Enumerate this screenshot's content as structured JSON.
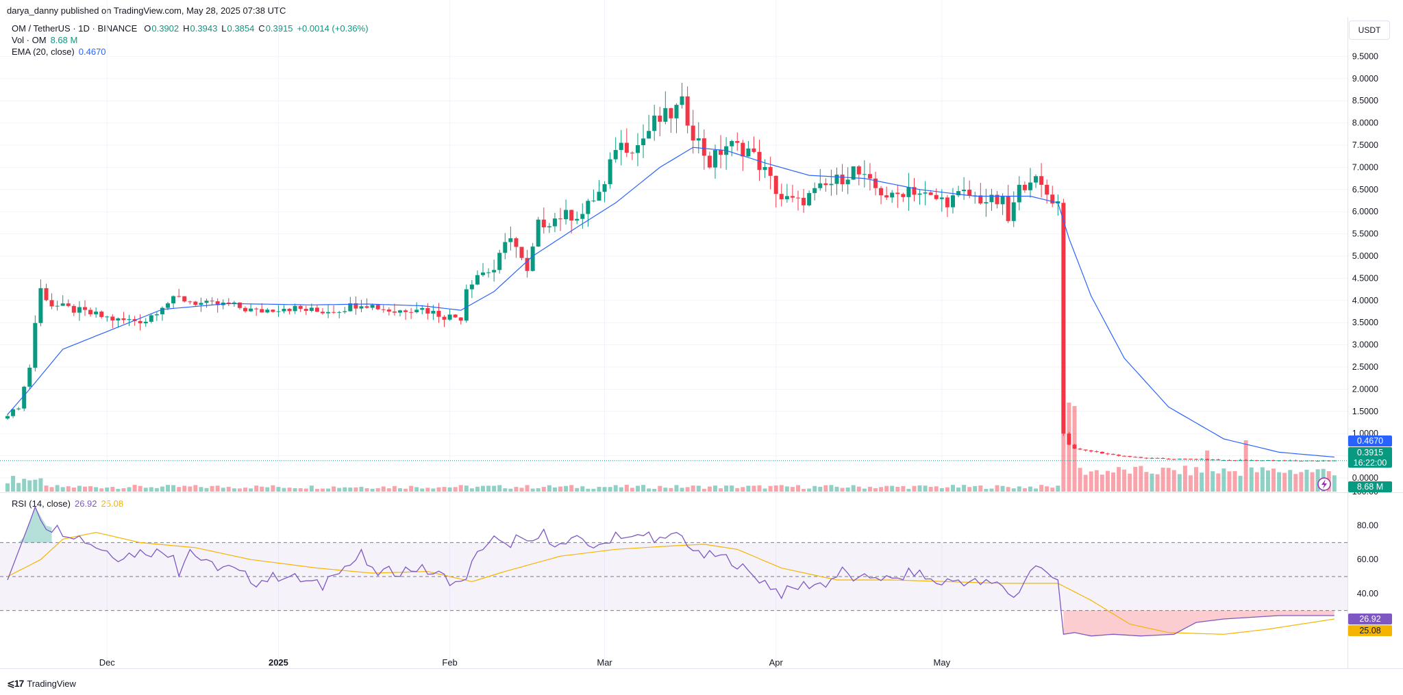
{
  "attribution": "darya_danny published on TradingView.com, May 28, 2025 07:38 UTC",
  "legend": {
    "symbol": "OM / TetherUS · 1D · BINANCE",
    "o_key": "O",
    "o_val": "0.3902",
    "h_key": "H",
    "h_val": "0.3943",
    "l_key": "L",
    "l_val": "0.3854",
    "c_key": "C",
    "c_val": "0.3915",
    "change": "+0.0014 (+0.36%)",
    "vol_label": "Vol · OM",
    "vol_val": "8.68 M",
    "ema_label": "EMA (20, close)",
    "ema_val": "0.4670",
    "rsi_label": "RSI (14, close)",
    "rsi_val": "26.92",
    "rsi_ma_val": "25.08"
  },
  "unit_button": "USDT",
  "branding": "TradingView",
  "colors": {
    "up": "#089981",
    "down": "#f23645",
    "ema": "#2962ff",
    "rsi": "#7e57c2",
    "rsi_ma": "#f5b400",
    "rsi_band": "#7e57c2"
  },
  "chart_data": [
    {
      "type": "candlestick",
      "title": "OM / TetherUS · 1D · BINANCE",
      "y_axis_ticks": [
        "9.5000",
        "9.0000",
        "8.5000",
        "8.0000",
        "7.5000",
        "7.0000",
        "6.5000",
        "6.0000",
        "5.5000",
        "5.0000",
        "4.5000",
        "4.0000",
        "3.5000",
        "3.0000",
        "2.5000",
        "2.0000",
        "1.5000",
        "1.0000",
        "0.5000",
        "0.0000"
      ],
      "ylim": [
        0,
        9.5
      ],
      "x_axis_ticks": [
        "Dec",
        "2025",
        "Feb",
        "Mar",
        "Apr",
        "May"
      ],
      "x_tick_dates": [
        "2024-12-01",
        "2025-01-01",
        "2025-02-01",
        "2025-03-01",
        "2025-04-01",
        "2025-05-01"
      ],
      "start_date": "2024-11-13",
      "last_price_label": "0.3915",
      "countdown_label": "16:22:00",
      "ema_label": "0.4670",
      "close_anchors": [
        [
          0,
          1.43
        ],
        [
          2,
          1.6
        ],
        [
          4,
          2.5
        ],
        [
          5,
          3.5
        ],
        [
          6,
          4.25
        ],
        [
          8,
          3.9
        ],
        [
          15,
          3.7
        ],
        [
          20,
          3.55
        ],
        [
          25,
          3.55
        ],
        [
          28,
          3.9
        ],
        [
          31,
          4.05
        ],
        [
          36,
          3.9
        ],
        [
          40,
          3.9
        ],
        [
          45,
          3.75
        ],
        [
          50,
          3.85
        ],
        [
          56,
          3.75
        ],
        [
          60,
          3.8
        ],
        [
          64,
          3.95
        ],
        [
          70,
          3.75
        ],
        [
          74,
          3.85
        ],
        [
          79,
          3.65
        ],
        [
          82,
          3.62
        ],
        [
          83,
          4.3
        ],
        [
          85,
          4.6
        ],
        [
          88,
          4.7
        ],
        [
          91,
          5.5
        ],
        [
          94,
          4.6
        ],
        [
          96,
          5.7
        ],
        [
          100,
          5.9
        ],
        [
          104,
          5.95
        ],
        [
          106,
          6.3
        ],
        [
          108,
          6.55
        ],
        [
          110,
          7.5
        ],
        [
          114,
          7.5
        ],
        [
          117,
          8.0
        ],
        [
          120,
          8.2
        ],
        [
          122,
          8.4
        ],
        [
          124,
          7.8
        ],
        [
          127,
          7.1
        ],
        [
          130,
          7.5
        ],
        [
          134,
          7.4
        ],
        [
          137,
          6.9
        ],
        [
          140,
          6.3
        ],
        [
          143,
          6.2
        ],
        [
          147,
          6.5
        ],
        [
          150,
          6.7
        ],
        [
          153,
          6.95
        ],
        [
          156,
          6.6
        ],
        [
          160,
          6.3
        ],
        [
          163,
          6.55
        ],
        [
          167,
          6.3
        ],
        [
          170,
          6.25
        ],
        [
          173,
          6.4
        ],
        [
          177,
          6.25
        ],
        [
          180,
          6.2
        ],
        [
          181,
          5.8
        ],
        [
          183,
          6.5
        ],
        [
          185,
          6.8
        ],
        [
          188,
          6.4
        ],
        [
          190,
          6.2
        ],
        [
          191,
          1.0
        ],
        [
          192,
          0.75
        ],
        [
          193,
          0.66
        ],
        [
          196,
          0.6
        ],
        [
          200,
          0.52
        ],
        [
          205,
          0.45
        ],
        [
          210,
          0.43
        ],
        [
          215,
          0.42
        ],
        [
          220,
          0.4
        ],
        [
          225,
          0.4
        ],
        [
          230,
          0.39
        ]
      ],
      "ema_anchors": [
        [
          0,
          1.43
        ],
        [
          4,
          2.0
        ],
        [
          10,
          2.9
        ],
        [
          18,
          3.3
        ],
        [
          28,
          3.8
        ],
        [
          40,
          3.93
        ],
        [
          55,
          3.9
        ],
        [
          65,
          3.92
        ],
        [
          75,
          3.88
        ],
        [
          82,
          3.78
        ],
        [
          88,
          4.2
        ],
        [
          95,
          5.0
        ],
        [
          103,
          5.65
        ],
        [
          110,
          6.2
        ],
        [
          118,
          7.0
        ],
        [
          124,
          7.45
        ],
        [
          130,
          7.38
        ],
        [
          137,
          7.1
        ],
        [
          145,
          6.82
        ],
        [
          155,
          6.75
        ],
        [
          165,
          6.5
        ],
        [
          175,
          6.35
        ],
        [
          185,
          6.35
        ],
        [
          190,
          6.2
        ],
        [
          192,
          5.4
        ],
        [
          196,
          4.1
        ],
        [
          202,
          2.7
        ],
        [
          210,
          1.6
        ],
        [
          220,
          0.88
        ],
        [
          230,
          0.58
        ],
        [
          240,
          0.47
        ]
      ],
      "volume_pattern_days": "low everywhere; spike days 191-193, 217, 224",
      "rsi": {
        "title": "RSI (14, close)",
        "y_axis_ticks": [
          "100.00",
          "80.00",
          "60.00",
          "40.00"
        ],
        "levels": [
          70,
          50,
          30
        ],
        "rsi_value": 26.92,
        "rsi_ma_value": 25.08,
        "rsi_anchors": [
          [
            0,
            48
          ],
          [
            2,
            65
          ],
          [
            4,
            82
          ],
          [
            5,
            91
          ],
          [
            7,
            80
          ],
          [
            12,
            75
          ],
          [
            16,
            68
          ],
          [
            20,
            62
          ],
          [
            25,
            65
          ],
          [
            30,
            64
          ],
          [
            31,
            53
          ],
          [
            33,
            66
          ],
          [
            36,
            57
          ],
          [
            40,
            55
          ],
          [
            45,
            47
          ],
          [
            50,
            51
          ],
          [
            55,
            46
          ],
          [
            57,
            44
          ],
          [
            59,
            54
          ],
          [
            62,
            57
          ],
          [
            64,
            63
          ],
          [
            66,
            52
          ],
          [
            70,
            53
          ],
          [
            74,
            55
          ],
          [
            78,
            51
          ],
          [
            82,
            45
          ],
          [
            84,
            57
          ],
          [
            86,
            68
          ],
          [
            88,
            72
          ],
          [
            90,
            67
          ],
          [
            92,
            73
          ],
          [
            94,
            68
          ],
          [
            97,
            75
          ],
          [
            100,
            68
          ],
          [
            104,
            72
          ],
          [
            107,
            66
          ],
          [
            110,
            76
          ],
          [
            113,
            72
          ],
          [
            116,
            75
          ],
          [
            119,
            70
          ],
          [
            121,
            76
          ],
          [
            123,
            70
          ],
          [
            125,
            62
          ],
          [
            128,
            62
          ],
          [
            131,
            60
          ],
          [
            134,
            52
          ],
          [
            137,
            47
          ],
          [
            140,
            40
          ],
          [
            144,
            45
          ],
          [
            148,
            46
          ],
          [
            151,
            53
          ],
          [
            154,
            47
          ],
          [
            157,
            51
          ],
          [
            160,
            47
          ],
          [
            164,
            53
          ],
          [
            168,
            46
          ],
          [
            172,
            48
          ],
          [
            176,
            46
          ],
          [
            180,
            45
          ],
          [
            182,
            37
          ],
          [
            184,
            48
          ],
          [
            186,
            57
          ],
          [
            188,
            51
          ],
          [
            190,
            48
          ],
          [
            191,
            16
          ],
          [
            193,
            17
          ],
          [
            196,
            15
          ],
          [
            200,
            16
          ],
          [
            205,
            15
          ],
          [
            211,
            16
          ],
          [
            215,
            23
          ],
          [
            220,
            25
          ],
          [
            225,
            26
          ],
          [
            230,
            27
          ],
          [
            240,
            27
          ]
        ],
        "ma_anchors": [
          [
            0,
            50
          ],
          [
            6,
            60
          ],
          [
            10,
            72
          ],
          [
            16,
            76
          ],
          [
            24,
            70
          ],
          [
            34,
            67
          ],
          [
            44,
            60
          ],
          [
            56,
            55
          ],
          [
            66,
            52
          ],
          [
            76,
            53
          ],
          [
            84,
            47
          ],
          [
            90,
            53
          ],
          [
            100,
            62
          ],
          [
            110,
            66
          ],
          [
            120,
            68
          ],
          [
            126,
            69
          ],
          [
            132,
            66
          ],
          [
            140,
            55
          ],
          [
            150,
            48
          ],
          [
            160,
            48
          ],
          [
            170,
            47
          ],
          [
            180,
            46
          ],
          [
            190,
            46
          ],
          [
            196,
            36
          ],
          [
            203,
            22
          ],
          [
            210,
            17
          ],
          [
            220,
            16
          ],
          [
            228,
            19
          ],
          [
            240,
            25
          ]
        ]
      }
    }
  ]
}
